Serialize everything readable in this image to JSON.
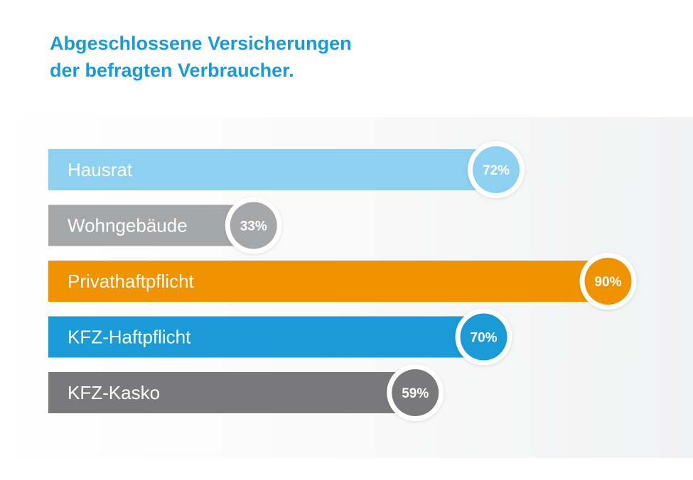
{
  "chart_data": {
    "type": "bar",
    "orientation": "horizontal",
    "title": [
      "Abgeschlossene Versicherungen",
      "der befragten Verbraucher."
    ],
    "categories": [
      "Hausrat",
      "Wohngebäude",
      "Privathaftpflicht",
      "KFZ-Haftpflicht",
      "KFZ-Kasko"
    ],
    "values": [
      72,
      33,
      90,
      70,
      59
    ],
    "value_labels": [
      "72%",
      "33%",
      "90%",
      "70%",
      "59%"
    ],
    "colors": [
      "#8ed0ef",
      "#a6a7a9",
      "#ef9400",
      "#1a9ad6",
      "#79797b"
    ],
    "xlim": [
      0,
      100
    ],
    "unit": "%"
  }
}
